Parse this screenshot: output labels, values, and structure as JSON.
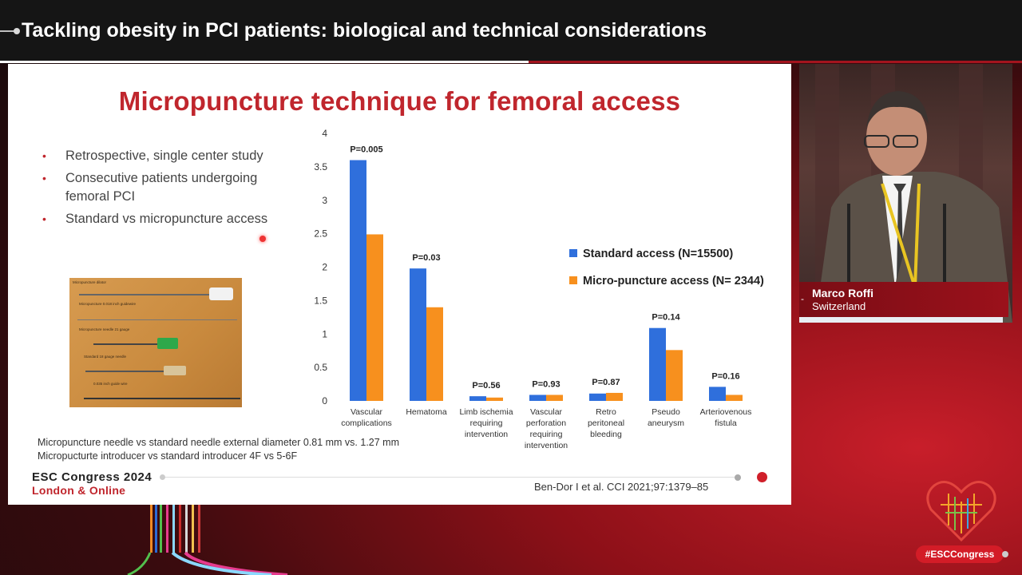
{
  "broadcast": {
    "title": "Tackling obesity in PCI patients: biological and technical considerations",
    "hashtag": "#ESCCongress"
  },
  "slide": {
    "title": "Micropuncture technique for femoral access",
    "bullets": [
      "Retrospective, single center study",
      "Consecutive patients undergoing femoral PCI",
      "Standard vs micropuncture access"
    ],
    "footnote_lines": [
      "Micropuncture needle vs standard needle external diameter 0.81 mm vs. 1.27 mm",
      "Micropucturte introducer vs standard introducer 4F vs 5-6F"
    ],
    "citation": "Ben-Dor I et al. CCI 2021;97:1379–85",
    "brand": {
      "name": "ESC Congress 2024",
      "location": "London & Online"
    },
    "photo_captions": [
      "Micropuncture dilator",
      "Micropuncture 0.018 inch guidewire",
      "Micropuncture needle 21 gauge",
      "Standard 18 gauge needle",
      "0.035 inch guide wire"
    ]
  },
  "chart_data": {
    "type": "bar",
    "categories": [
      [
        "Vascular",
        "complications"
      ],
      [
        "Hematoma"
      ],
      [
        "Limb ischemia",
        "requiring",
        "intervention"
      ],
      [
        "Vascular",
        "perforation",
        "requiring",
        "intervention"
      ],
      [
        "Retro",
        "peritoneal",
        "bleeding"
      ],
      [
        "Pseudo",
        "aneurysm"
      ],
      [
        "Arteriovenous",
        "fistula"
      ]
    ],
    "series": [
      {
        "name": "Standard access (N=15500)",
        "color": "#2f6fdc",
        "values": [
          3.6,
          1.98,
          0.07,
          0.09,
          0.11,
          1.09,
          0.21
        ]
      },
      {
        "name": "Micro-puncture access (N= 2344)",
        "color": "#f7901e",
        "values": [
          2.49,
          1.4,
          0.05,
          0.09,
          0.12,
          0.76,
          0.09
        ]
      }
    ],
    "p_values": [
      "P=0.005",
      "P=0.03",
      "P=0.56",
      "P=0.93",
      "P=0.87",
      "P=0.14",
      "P=0.16"
    ],
    "yticks": [
      "0",
      "0.5",
      "1",
      "1.5",
      "2",
      "2.5",
      "3",
      "3.5",
      "4"
    ],
    "ylim": [
      0,
      4
    ],
    "legend_position": "right"
  },
  "speaker": {
    "name": "Marco Roffi",
    "country": "Switzerland"
  }
}
